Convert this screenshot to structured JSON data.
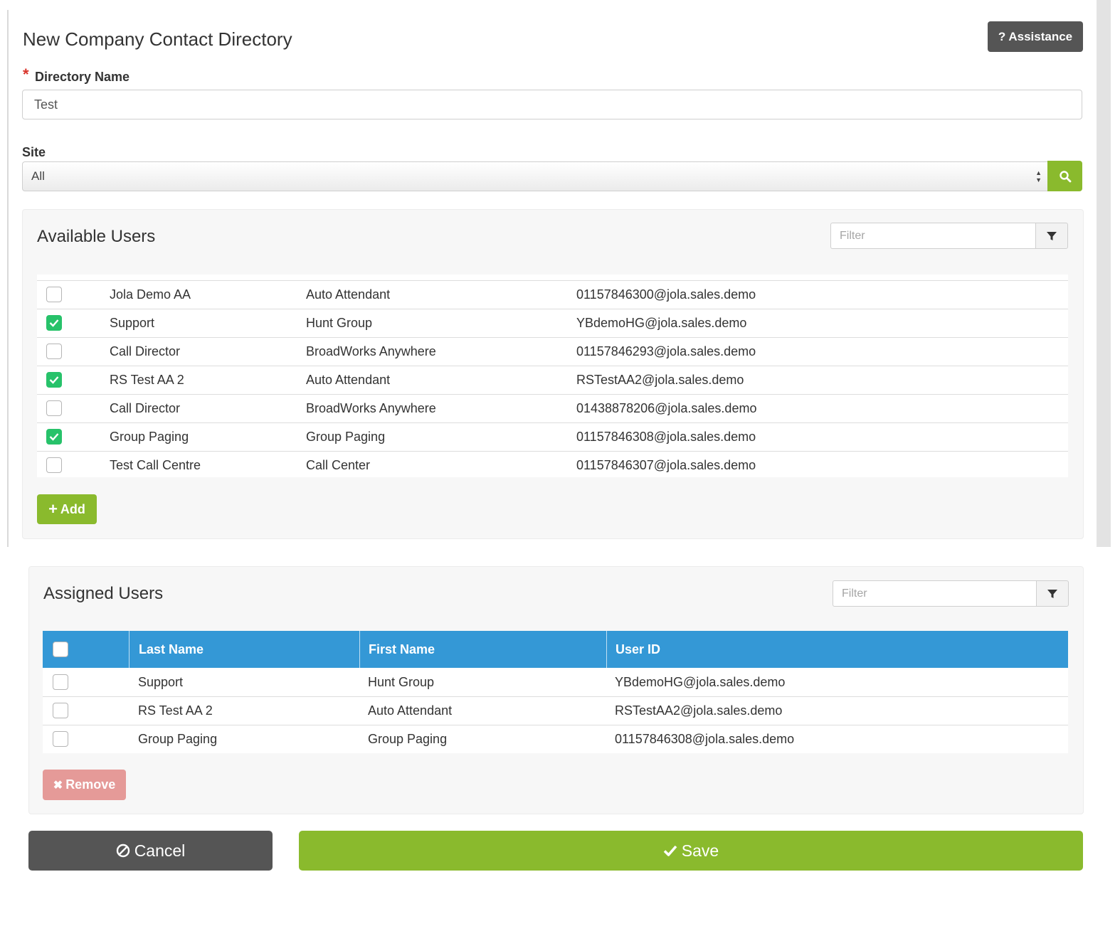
{
  "header": {
    "title": "New Company Contact Directory",
    "assistance_label": "? Assistance"
  },
  "form": {
    "required_marker": "*",
    "directory_name_label": "Directory Name",
    "directory_name_value": "Test",
    "site_label": "Site",
    "site_selected": "All"
  },
  "available_users": {
    "title": "Available Users",
    "filter_placeholder": "Filter",
    "rows": [
      {
        "checked": false,
        "last_name": "Jola Demo AA",
        "first_name": "Auto Attendant",
        "user_id": "01157846300@jola.sales.demo"
      },
      {
        "checked": true,
        "last_name": "Support",
        "first_name": "Hunt Group",
        "user_id": "YBdemoHG@jola.sales.demo"
      },
      {
        "checked": false,
        "last_name": "Call Director",
        "first_name": "BroadWorks Anywhere",
        "user_id": "01157846293@jola.sales.demo"
      },
      {
        "checked": true,
        "last_name": "RS Test AA 2",
        "first_name": "Auto Attendant",
        "user_id": "RSTestAA2@jola.sales.demo"
      },
      {
        "checked": false,
        "last_name": "Call Director",
        "first_name": "BroadWorks Anywhere",
        "user_id": "01438878206@jola.sales.demo"
      },
      {
        "checked": true,
        "last_name": "Group Paging",
        "first_name": "Group Paging",
        "user_id": "01157846308@jola.sales.demo"
      },
      {
        "checked": false,
        "last_name": "Test Call Centre",
        "first_name": "Call Center",
        "user_id": "01157846307@jola.sales.demo"
      }
    ],
    "add_label": "Add"
  },
  "assigned_users": {
    "title": "Assigned Users",
    "filter_placeholder": "Filter",
    "columns": {
      "last_name": "Last Name",
      "first_name": "First Name",
      "user_id": "User ID"
    },
    "rows": [
      {
        "checked": false,
        "last_name": "Support",
        "first_name": "Hunt Group",
        "user_id": "YBdemoHG@jola.sales.demo"
      },
      {
        "checked": false,
        "last_name": "RS Test AA 2",
        "first_name": "Auto Attendant",
        "user_id": "RSTestAA2@jola.sales.demo"
      },
      {
        "checked": false,
        "last_name": "Group Paging",
        "first_name": "Group Paging",
        "user_id": "01157846308@jola.sales.demo"
      }
    ],
    "remove_label": "Remove"
  },
  "footer": {
    "cancel_label": "Cancel",
    "save_label": "Save"
  },
  "colors": {
    "primary_green": "#8aba2d",
    "check_green": "#27c26a",
    "header_blue": "#3498d6",
    "dark_button": "#555555",
    "remove_red": "#e59a98"
  }
}
